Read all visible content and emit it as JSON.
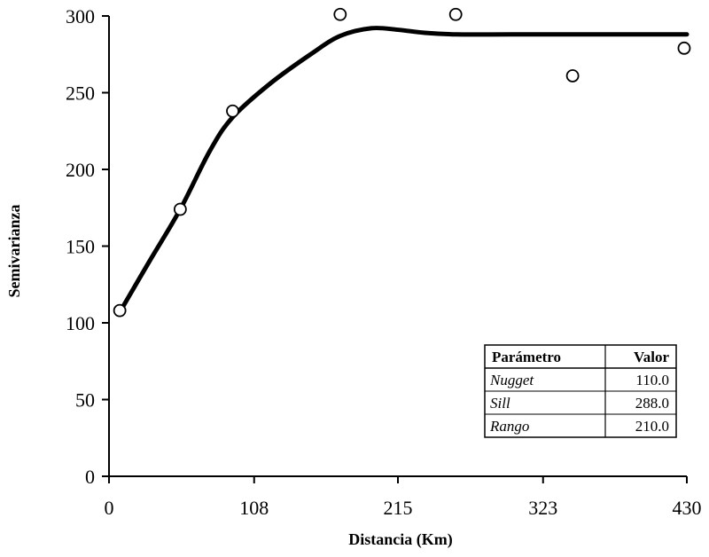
{
  "chart_data": {
    "type": "scatter",
    "title": "",
    "xlabel": "Distancia (Km)",
    "ylabel": "Semivarianza",
    "xlim": [
      0,
      430
    ],
    "ylim": [
      0,
      300
    ],
    "x_ticks": [
      "0",
      "108",
      "215",
      "323",
      "430"
    ],
    "y_ticks": [
      "0",
      "50",
      "100",
      "150",
      "200",
      "250",
      "300"
    ],
    "series": [
      {
        "kind": "points",
        "marker": "open-circle",
        "x": [
          8,
          53,
          92,
          172,
          258,
          345,
          428
        ],
        "y": [
          108,
          174,
          238,
          301,
          301,
          261,
          279
        ]
      },
      {
        "kind": "fitted-curve",
        "x": [
          10,
          30,
          53,
          75,
          92,
          120,
          150,
          172,
          195,
          215,
          235,
          258,
          300,
          350,
          400,
          430
        ],
        "y": [
          110,
          140,
          174,
          212,
          234,
          256,
          275,
          287,
          292,
          291,
          289,
          288,
          288,
          288,
          288,
          288
        ]
      }
    ],
    "grid": false,
    "legend": "none",
    "table": {
      "headers": [
        "Parámetro",
        "Valor"
      ],
      "rows": [
        [
          "Nugget",
          "110.0"
        ],
        [
          "Sill",
          "288.0"
        ],
        [
          "Rango",
          "210.0"
        ]
      ]
    }
  }
}
